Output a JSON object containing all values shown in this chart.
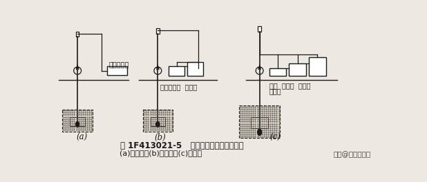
{
  "title": "图 1F413021-5   高压喷射灌浆法施工方法",
  "subtitle": "(a)单管法；(b)二管法；(c)三管法",
  "watermark": "头条@工程小达人",
  "background_color": "#ede9e2",
  "diagram_a_label": "(a)",
  "diagram_b_label": "(b)",
  "diagram_c_label": "(c)",
  "label_a_text": "高压泥浆泵",
  "label_b_text": "高压泥浆泵  空压机",
  "label_c_text1": "高压  空压机  泥浆泵",
  "label_c_text2": "清水泵"
}
